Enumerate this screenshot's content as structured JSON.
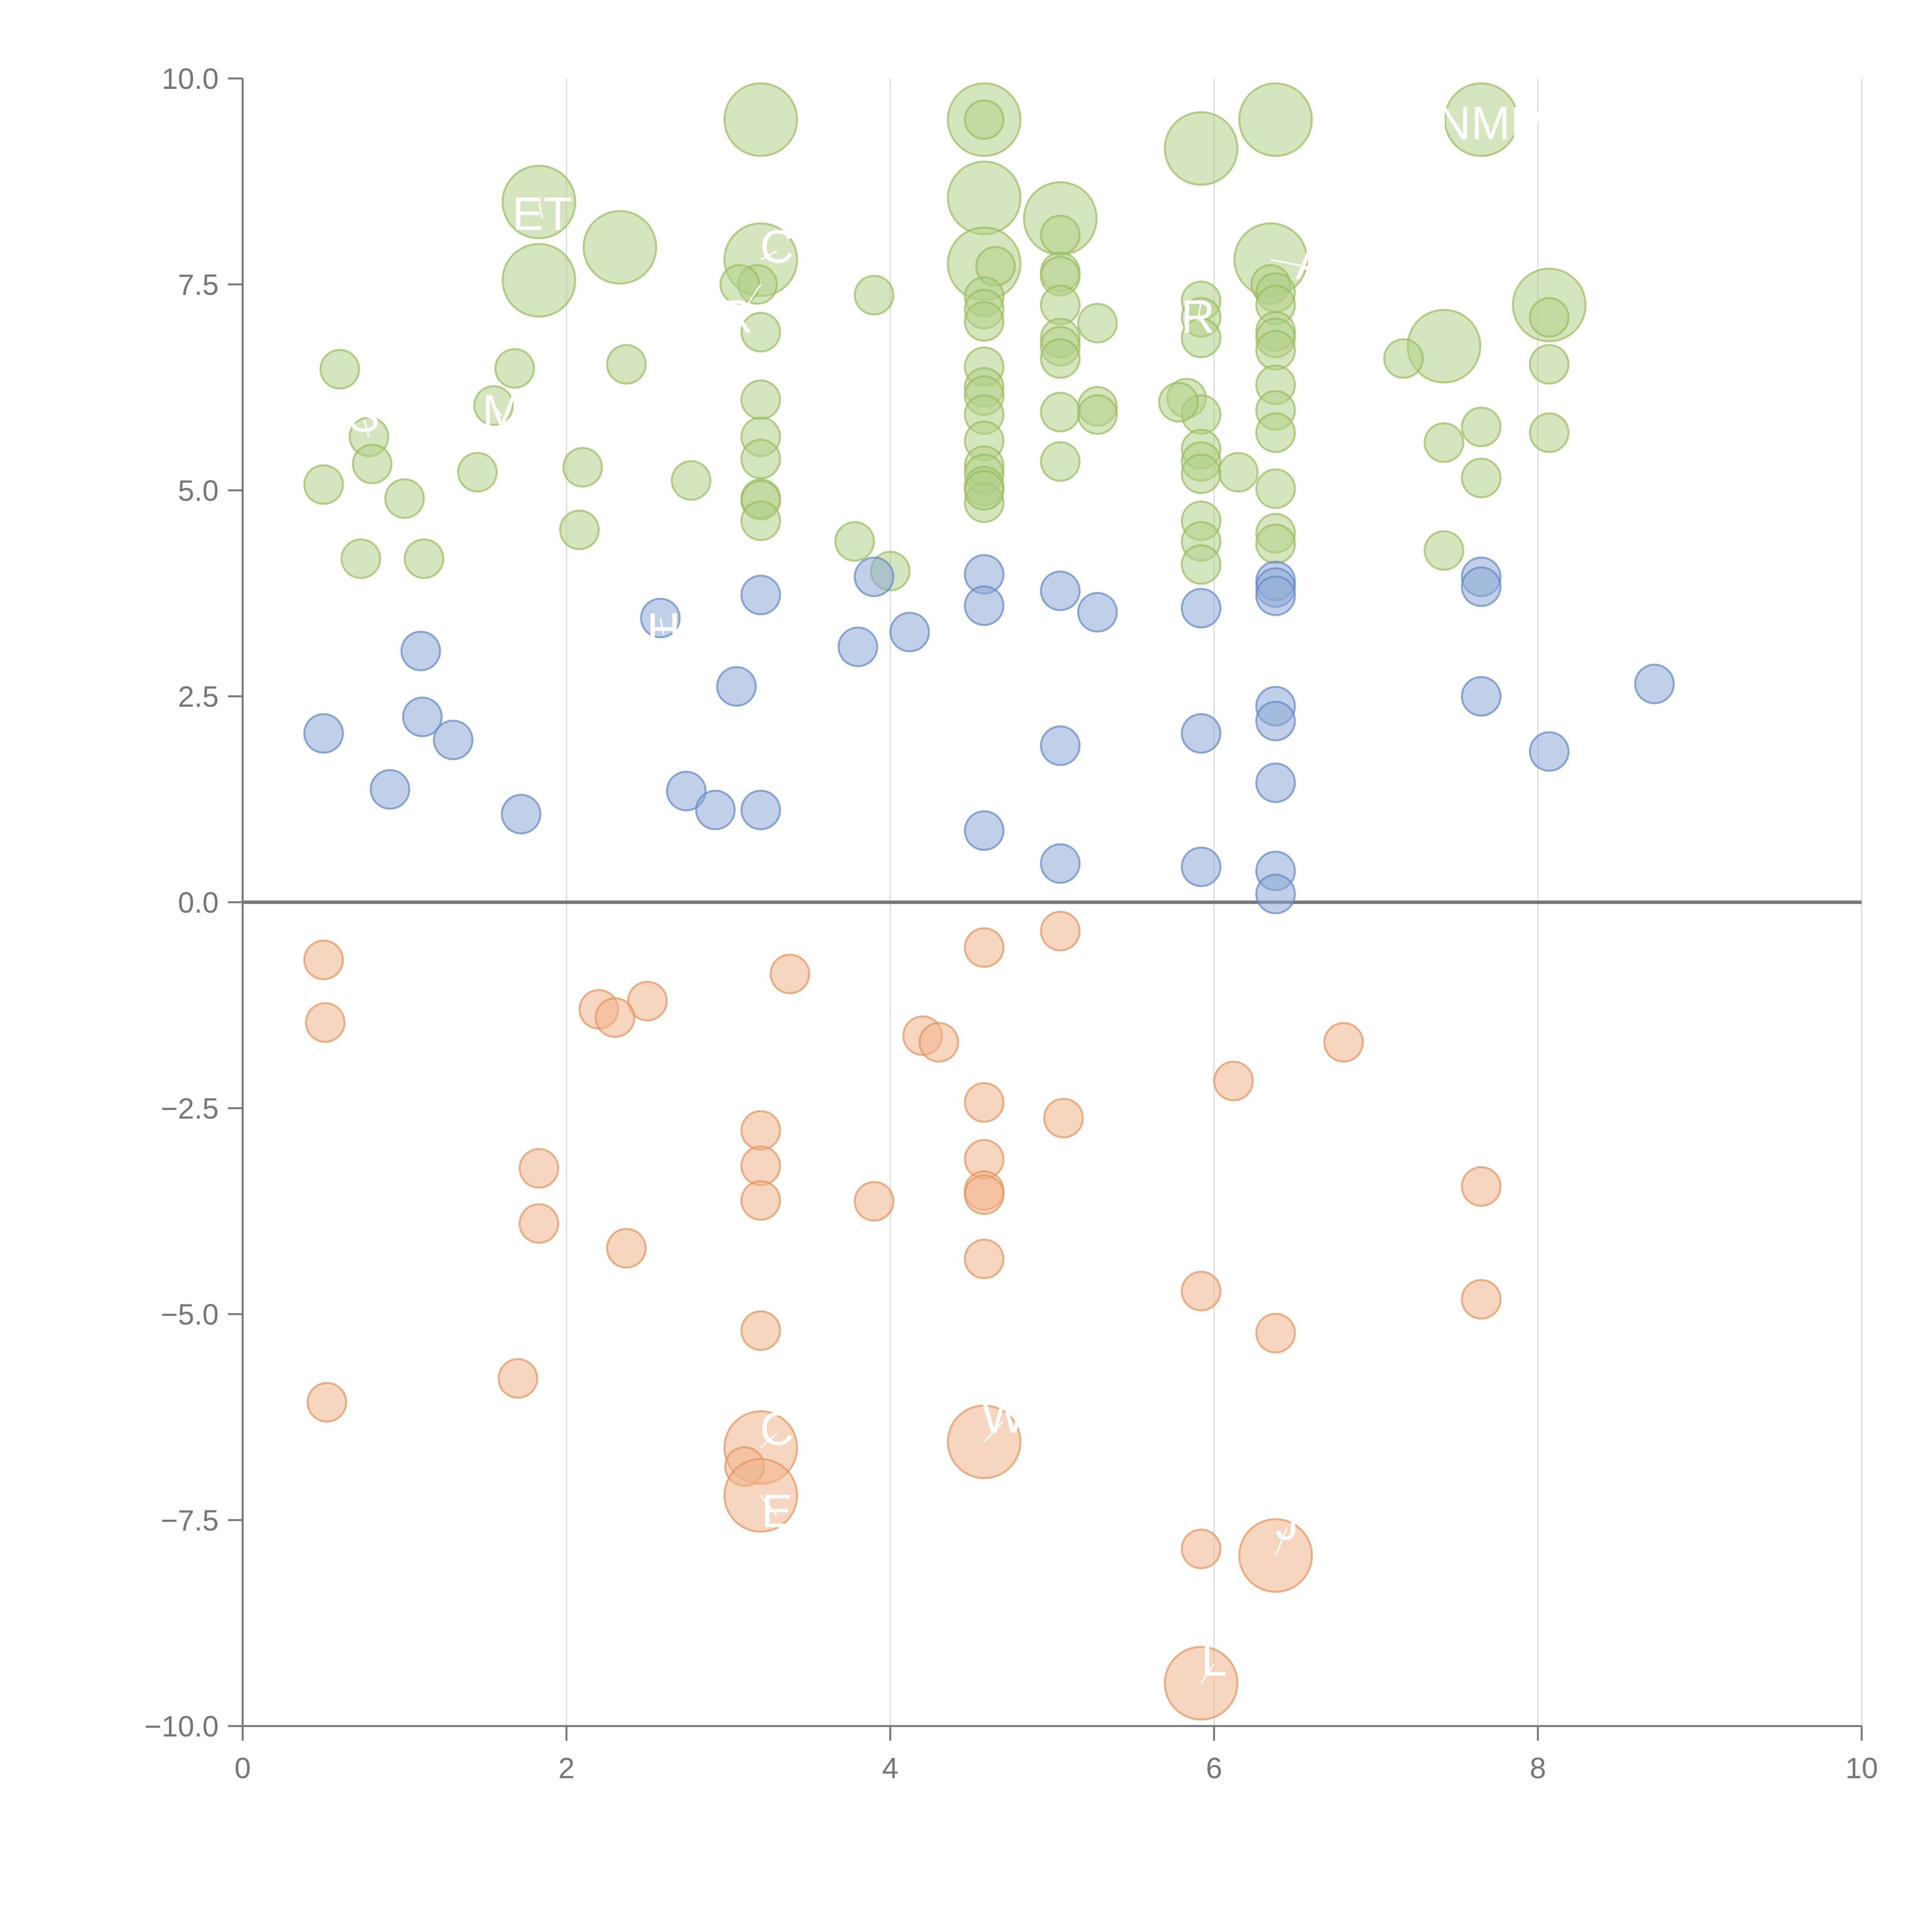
{
  "chart_data": {
    "type": "scatter",
    "title": "",
    "xlabel": "",
    "ylabel": "",
    "xlim": [
      0,
      10
    ],
    "ylim": [
      -10,
      10
    ],
    "x_ticks": [
      0,
      2,
      4,
      6,
      8,
      10
    ],
    "x_tick_labels": [
      "0",
      "2",
      "4",
      "6",
      "8",
      "10"
    ],
    "y_ticks": [
      10,
      7.5,
      5,
      2.5,
      0,
      -2.5,
      -5,
      -7.5,
      -10
    ],
    "y_tick_labels": [
      "10.0",
      "7.5",
      "5.0",
      "2.5",
      "0.0",
      "−2.5",
      "−5.0",
      "−7.5",
      "−10.0"
    ],
    "x_grid": true,
    "y_grid": false,
    "zero_line": true,
    "legend": "none",
    "colors": {
      "green": {
        "fill": "#b3cf87",
        "stroke": "#98bc5c"
      },
      "blue": {
        "fill": "#8eaad6",
        "stroke": "#5f88c4"
      },
      "orange": {
        "fill": "#f0b58c",
        "stroke": "#e3935b"
      }
    },
    "series": [
      {
        "color": "green",
        "points": [
          [
            3.2,
            9.5,
            3
          ],
          [
            4.58,
            9.5,
            3
          ],
          [
            4.58,
            9.5,
            1
          ],
          [
            6.38,
            9.5,
            3
          ],
          [
            7.65,
            9.5,
            3
          ],
          [
            5.92,
            9.15,
            3
          ],
          [
            1.83,
            8.5,
            3
          ],
          [
            4.58,
            8.55,
            3
          ],
          [
            5.05,
            8.3,
            3
          ],
          [
            5.05,
            8.1,
            1
          ],
          [
            2.33,
            7.95,
            3
          ],
          [
            3.2,
            7.8,
            3
          ],
          [
            6.35,
            7.8,
            3
          ],
          [
            4.58,
            7.75,
            3
          ],
          [
            4.65,
            7.72,
            1
          ],
          [
            1.83,
            7.55,
            3
          ],
          [
            3.18,
            7.5,
            1
          ],
          [
            3.07,
            7.5,
            1
          ],
          [
            3.9,
            7.37,
            1
          ],
          [
            5.05,
            7.65,
            1
          ],
          [
            5.05,
            7.6,
            1
          ],
          [
            6.35,
            7.5,
            1
          ],
          [
            6.38,
            7.4,
            1
          ],
          [
            6.38,
            7.25,
            1
          ],
          [
            4.58,
            7.35,
            1
          ],
          [
            4.58,
            7.2,
            1
          ],
          [
            4.58,
            7.05,
            1
          ],
          [
            5.05,
            7.25,
            1
          ],
          [
            5.92,
            7.3,
            1
          ],
          [
            5.92,
            7.1,
            1
          ],
          [
            5.92,
            6.85,
            1
          ],
          [
            8.07,
            7.25,
            3
          ],
          [
            8.07,
            7.1,
            1
          ],
          [
            5.28,
            7.03,
            1
          ],
          [
            3.2,
            6.92,
            1
          ],
          [
            6.38,
            6.93,
            1
          ],
          [
            6.38,
            6.85,
            1
          ],
          [
            6.38,
            6.7,
            1
          ],
          [
            5.05,
            6.85,
            1
          ],
          [
            5.05,
            6.75,
            1
          ],
          [
            5.05,
            6.6,
            1
          ],
          [
            7.42,
            6.75,
            3
          ],
          [
            7.17,
            6.6,
            1
          ],
          [
            0.6,
            6.47,
            1
          ],
          [
            1.68,
            6.48,
            1
          ],
          [
            2.37,
            6.53,
            1
          ],
          [
            4.58,
            6.5,
            1
          ],
          [
            8.07,
            6.53,
            1
          ],
          [
            6.38,
            6.28,
            1
          ],
          [
            4.58,
            6.25,
            1
          ],
          [
            4.58,
            6.15,
            1
          ],
          [
            4.58,
            5.92,
            1
          ],
          [
            3.2,
            6.1,
            1
          ],
          [
            5.83,
            6.12,
            1
          ],
          [
            5.92,
            5.92,
            1
          ],
          [
            5.78,
            6.07,
            1
          ],
          [
            1.55,
            6.03,
            1
          ],
          [
            6.38,
            5.97,
            1
          ],
          [
            5.05,
            5.95,
            1
          ],
          [
            5.28,
            6.02,
            1
          ],
          [
            5.28,
            5.92,
            1
          ],
          [
            6.38,
            5.7,
            1
          ],
          [
            0.78,
            5.65,
            1
          ],
          [
            3.2,
            5.65,
            1
          ],
          [
            4.58,
            5.6,
            1
          ],
          [
            7.65,
            5.77,
            1
          ],
          [
            8.07,
            5.7,
            1
          ],
          [
            7.42,
            5.58,
            1
          ],
          [
            5.92,
            5.5,
            1
          ],
          [
            5.92,
            5.35,
            1
          ],
          [
            5.92,
            5.2,
            1
          ],
          [
            3.2,
            5.38,
            1
          ],
          [
            5.05,
            5.35,
            1
          ],
          [
            0.8,
            5.32,
            1
          ],
          [
            2.1,
            5.28,
            1
          ],
          [
            4.58,
            5.3,
            1
          ],
          [
            4.58,
            5.2,
            1
          ],
          [
            4.58,
            5.05,
            1
          ],
          [
            4.58,
            4.85,
            1
          ],
          [
            4.58,
            5.0,
            1
          ],
          [
            6.15,
            5.22,
            1
          ],
          [
            1.45,
            5.22,
            1
          ],
          [
            7.65,
            5.15,
            1
          ],
          [
            0.5,
            5.07,
            1
          ],
          [
            2.77,
            5.12,
            1
          ],
          [
            6.38,
            5.02,
            1
          ],
          [
            1.0,
            4.9,
            1
          ],
          [
            3.2,
            4.9,
            1
          ],
          [
            3.2,
            4.88,
            1
          ],
          [
            3.2,
            4.63,
            1
          ],
          [
            5.92,
            4.63,
            1
          ],
          [
            2.08,
            4.52,
            1
          ],
          [
            6.38,
            4.48,
            1
          ],
          [
            6.38,
            4.35,
            1
          ],
          [
            5.92,
            4.38,
            1
          ],
          [
            3.78,
            4.38,
            1
          ],
          [
            7.42,
            4.27,
            1
          ],
          [
            0.73,
            4.17,
            1
          ],
          [
            1.12,
            4.17,
            1
          ],
          [
            5.92,
            4.1,
            1
          ],
          [
            4.0,
            4.02,
            1
          ]
        ]
      },
      {
        "color": "blue",
        "points": [
          [
            4.58,
            3.98,
            1
          ],
          [
            3.9,
            3.95,
            1
          ],
          [
            6.38,
            3.9,
            1
          ],
          [
            6.38,
            3.82,
            1
          ],
          [
            6.38,
            3.72,
            1
          ],
          [
            7.65,
            3.95,
            1
          ],
          [
            7.65,
            3.83,
            1
          ],
          [
            5.05,
            3.78,
            1
          ],
          [
            3.2,
            3.73,
            1
          ],
          [
            4.58,
            3.6,
            1
          ],
          [
            5.92,
            3.57,
            1
          ],
          [
            5.28,
            3.52,
            1
          ],
          [
            2.58,
            3.45,
            1
          ],
          [
            4.12,
            3.28,
            1
          ],
          [
            3.8,
            3.1,
            1
          ],
          [
            1.1,
            3.05,
            1
          ],
          [
            8.72,
            2.65,
            1
          ],
          [
            3.05,
            2.62,
            1
          ],
          [
            7.65,
            2.5,
            1
          ],
          [
            6.38,
            2.38,
            1
          ],
          [
            1.11,
            2.25,
            1
          ],
          [
            6.38,
            2.2,
            1
          ],
          [
            0.5,
            2.05,
            1
          ],
          [
            5.92,
            2.05,
            1
          ],
          [
            1.3,
            1.97,
            1
          ],
          [
            5.05,
            1.9,
            1
          ],
          [
            8.07,
            1.83,
            1
          ],
          [
            6.38,
            1.45,
            1
          ],
          [
            0.91,
            1.37,
            1
          ],
          [
            2.74,
            1.35,
            1
          ],
          [
            2.92,
            1.12,
            1
          ],
          [
            3.2,
            1.12,
            1
          ],
          [
            1.72,
            1.07,
            1
          ],
          [
            4.58,
            0.87,
            1
          ],
          [
            5.05,
            0.47,
            1
          ],
          [
            5.92,
            0.43,
            1
          ],
          [
            6.38,
            0.38,
            1
          ],
          [
            6.38,
            0.1,
            1
          ]
        ]
      },
      {
        "color": "orange",
        "points": [
          [
            5.05,
            -0.35,
            1
          ],
          [
            4.58,
            -0.55,
            1
          ],
          [
            0.5,
            -0.7,
            1
          ],
          [
            3.38,
            -0.87,
            1
          ],
          [
            2.5,
            -1.2,
            1
          ],
          [
            2.2,
            -1.3,
            1
          ],
          [
            2.3,
            -1.4,
            1
          ],
          [
            0.51,
            -1.46,
            1
          ],
          [
            4.2,
            -1.62,
            1
          ],
          [
            4.3,
            -1.7,
            1
          ],
          [
            6.8,
            -1.7,
            1
          ],
          [
            6.12,
            -2.17,
            1
          ],
          [
            4.58,
            -2.43,
            1
          ],
          [
            5.07,
            -2.62,
            1
          ],
          [
            3.2,
            -2.77,
            1
          ],
          [
            4.58,
            -3.12,
            1
          ],
          [
            3.2,
            -3.2,
            1
          ],
          [
            1.83,
            -3.23,
            1
          ],
          [
            7.65,
            -3.45,
            1
          ],
          [
            4.58,
            -3.5,
            1
          ],
          [
            4.58,
            -3.55,
            1
          ],
          [
            3.2,
            -3.62,
            1
          ],
          [
            3.9,
            -3.63,
            1
          ],
          [
            1.83,
            -3.9,
            1
          ],
          [
            2.37,
            -4.2,
            1
          ],
          [
            4.58,
            -4.33,
            1
          ],
          [
            5.92,
            -4.72,
            1
          ],
          [
            7.65,
            -4.82,
            1
          ],
          [
            3.2,
            -5.2,
            1
          ],
          [
            6.38,
            -5.23,
            1
          ],
          [
            1.7,
            -5.78,
            1
          ],
          [
            0.52,
            -6.07,
            1
          ],
          [
            3.2,
            -6.62,
            3
          ],
          [
            4.58,
            -6.55,
            3
          ],
          [
            3.1,
            -6.85,
            1
          ],
          [
            3.2,
            -7.2,
            3
          ],
          [
            5.92,
            -7.85,
            1
          ],
          [
            6.38,
            -7.93,
            3
          ],
          [
            5.92,
            -9.48,
            3
          ]
        ]
      }
    ],
    "annotations": [
      {
        "text": "ET",
        "x": 1.85,
        "y": 8.35,
        "lx": 1.83,
        "ly": 8.5
      },
      {
        "text": "C",
        "x": 3.3,
        "y": 7.95,
        "lx": 3.2,
        "ly": 7.8
      },
      {
        "text": "R",
        "x": 3.05,
        "y": 7.1,
        "lx": 3.2,
        "ly": 7.5
      },
      {
        "text": "A",
        "x": 6.6,
        "y": 7.75,
        "lx": 6.35,
        "ly": 7.8
      },
      {
        "text": "R",
        "x": 5.9,
        "y": 7.1,
        "lx": 5.92,
        "ly": 7.3
      },
      {
        "text": "NMP",
        "x": 7.7,
        "y": 9.45,
        "lx": 7.65,
        "ly": 9.5
      },
      {
        "text": "M",
        "x": 1.6,
        "y": 5.95,
        "lx": 1.55,
        "ly": 6.03
      },
      {
        "text": "S",
        "x": 0.75,
        "y": 5.9,
        "lx": 0.78,
        "ly": 5.65
      },
      {
        "text": "H",
        "x": 2.6,
        "y": 3.3,
        "lx": 2.58,
        "ly": 3.45
      },
      {
        "text": "C",
        "x": 3.3,
        "y": -6.4,
        "lx": 3.2,
        "ly": -6.62
      },
      {
        "text": "E",
        "x": 3.3,
        "y": -7.4,
        "lx": 3.2,
        "ly": -7.2
      },
      {
        "text": "W",
        "x": 4.7,
        "y": -6.25,
        "lx": 4.58,
        "ly": -6.55
      },
      {
        "text": "J",
        "x": 6.45,
        "y": -7.55,
        "lx": 6.38,
        "ly": -7.93
      },
      {
        "text": "L",
        "x": 6.0,
        "y": -9.2,
        "lx": 5.92,
        "ly": -9.48
      }
    ]
  }
}
